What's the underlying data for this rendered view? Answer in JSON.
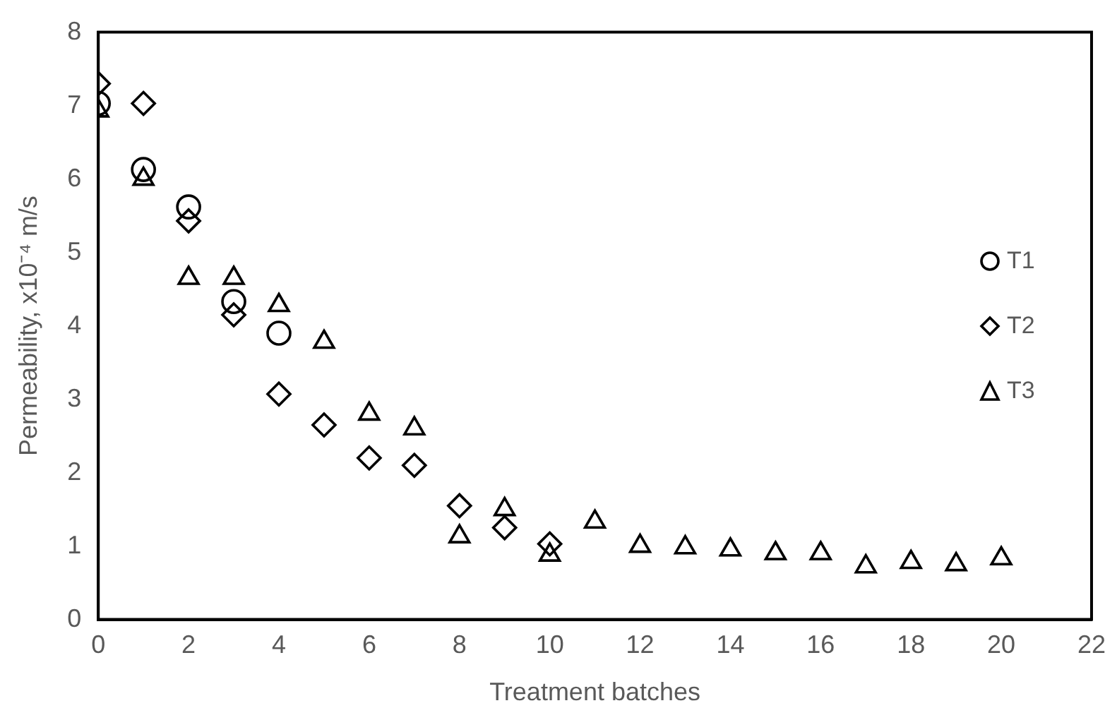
{
  "chart_data": {
    "type": "scatter",
    "xlabel": "Treatment batches",
    "ylabel": "Permeability, x10⁻⁴ m/s",
    "xlim": [
      0,
      22
    ],
    "xticks": [
      0,
      2,
      4,
      6,
      8,
      10,
      12,
      14,
      16,
      18,
      20,
      22
    ],
    "ylim": [
      0,
      8
    ],
    "yticks": [
      0,
      1,
      2,
      3,
      4,
      5,
      6,
      7,
      8
    ],
    "grid": false,
    "legend": "right",
    "series": [
      {
        "name": "T1",
        "color": "#000000",
        "marker": "circle",
        "x": [
          0,
          1,
          2,
          3,
          4
        ],
        "values": [
          7.03,
          6.13,
          5.62,
          4.33,
          3.9
        ]
      },
      {
        "name": "T2",
        "color": "#000000",
        "marker": "diamond",
        "x": [
          0,
          1,
          2,
          3,
          4,
          5,
          6,
          7,
          8,
          9,
          10
        ],
        "values": [
          7.3,
          7.03,
          5.43,
          4.15,
          3.07,
          2.65,
          2.2,
          2.1,
          1.55,
          1.25,
          1.03
        ]
      },
      {
        "name": "T3",
        "color": "#000000",
        "marker": "triangle",
        "x": [
          0,
          1,
          2,
          3,
          4,
          5,
          6,
          7,
          8,
          9,
          10,
          11,
          12,
          13,
          14,
          15,
          16,
          17,
          18,
          19,
          20
        ],
        "values": [
          6.93,
          6.0,
          4.65,
          4.65,
          4.28,
          3.78,
          2.8,
          2.6,
          1.13,
          1.5,
          0.88,
          1.33,
          1.0,
          0.98,
          0.95,
          0.9,
          0.9,
          0.72,
          0.78,
          0.75,
          0.83
        ]
      }
    ]
  }
}
